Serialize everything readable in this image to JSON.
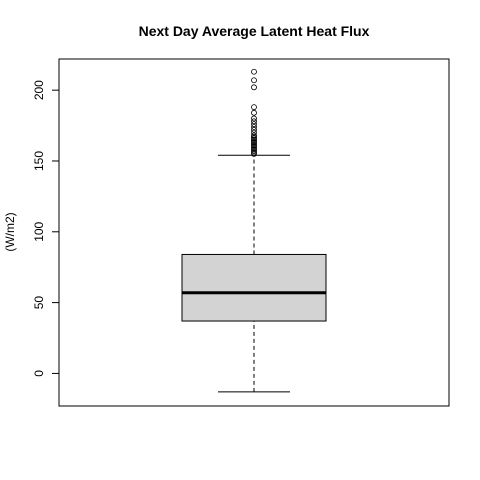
{
  "chart_data": {
    "type": "box",
    "title": "Next Day Average Latent Heat Flux",
    "xlabel": "",
    "ylabel": "(W/m2)",
    "ylim": [
      -23,
      222
    ],
    "yticks": [
      0,
      50,
      100,
      150,
      200
    ],
    "box": {
      "whisker_low": -13,
      "q1": 37,
      "median": 57,
      "q3": 84,
      "whisker_high": 154
    },
    "outliers": [
      155,
      156,
      157,
      158,
      159,
      160,
      161,
      162,
      163,
      164,
      165,
      166,
      167,
      168,
      170,
      172,
      174,
      176,
      178,
      180,
      184,
      188,
      202,
      207,
      213
    ],
    "colors": {
      "box_fill": "#d3d3d3",
      "stroke": "#000000",
      "background": "#ffffff"
    }
  }
}
